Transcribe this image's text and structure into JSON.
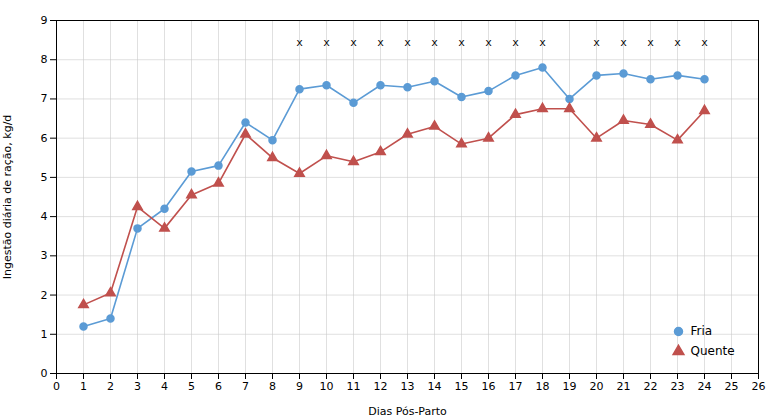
{
  "chart_data": {
    "type": "line",
    "xlabel": "Dias Pós-Parto",
    "ylabel": "Ingestão diária de ração, kg/d",
    "x": [
      1,
      2,
      3,
      4,
      5,
      6,
      7,
      8,
      9,
      10,
      11,
      12,
      13,
      14,
      15,
      16,
      17,
      18,
      19,
      20,
      21,
      22,
      23,
      24
    ],
    "series": [
      {
        "name": "Fria",
        "color": "#5B9BD5",
        "marker": "circle",
        "values": [
          1.2,
          1.4,
          3.7,
          4.2,
          5.15,
          5.3,
          6.4,
          5.95,
          7.25,
          7.35,
          6.9,
          7.35,
          7.3,
          7.45,
          7.05,
          7.2,
          7.6,
          7.8,
          7.0,
          7.6,
          7.65,
          7.5,
          7.6,
          7.5
        ]
      },
      {
        "name": "Quente",
        "color": "#C0504D",
        "marker": "triangle",
        "values": [
          1.75,
          2.05,
          4.25,
          3.7,
          4.55,
          4.85,
          6.1,
          5.5,
          5.1,
          5.55,
          5.4,
          5.65,
          6.1,
          6.3,
          5.85,
          6.0,
          6.6,
          6.75,
          6.75,
          6.0,
          6.45,
          6.35,
          5.95,
          6.7
        ]
      }
    ],
    "annotations": [
      {
        "x": 9,
        "y": 8.45,
        "text": "x"
      },
      {
        "x": 10,
        "y": 8.45,
        "text": "x"
      },
      {
        "x": 11,
        "y": 8.45,
        "text": "x"
      },
      {
        "x": 12,
        "y": 8.45,
        "text": "x"
      },
      {
        "x": 13,
        "y": 8.45,
        "text": "x"
      },
      {
        "x": 14,
        "y": 8.45,
        "text": "x"
      },
      {
        "x": 15,
        "y": 8.45,
        "text": "x"
      },
      {
        "x": 16,
        "y": 8.45,
        "text": "x"
      },
      {
        "x": 17,
        "y": 8.45,
        "text": "x"
      },
      {
        "x": 18,
        "y": 8.45,
        "text": "x"
      },
      {
        "x": 20,
        "y": 8.45,
        "text": "x"
      },
      {
        "x": 21,
        "y": 8.45,
        "text": "x"
      },
      {
        "x": 22,
        "y": 8.45,
        "text": "x"
      },
      {
        "x": 23,
        "y": 8.45,
        "text": "x"
      },
      {
        "x": 24,
        "y": 8.45,
        "text": "x"
      }
    ],
    "xlim": [
      0,
      26
    ],
    "xticks": [
      0,
      1,
      2,
      3,
      4,
      5,
      6,
      7,
      8,
      9,
      10,
      11,
      12,
      13,
      14,
      15,
      16,
      17,
      18,
      19,
      20,
      21,
      22,
      23,
      24,
      25,
      26
    ],
    "ylim": [
      0,
      9
    ],
    "yticks": [
      0,
      1,
      2,
      3,
      4,
      5,
      6,
      7,
      8,
      9
    ],
    "grid": true,
    "legend": "lower right"
  }
}
